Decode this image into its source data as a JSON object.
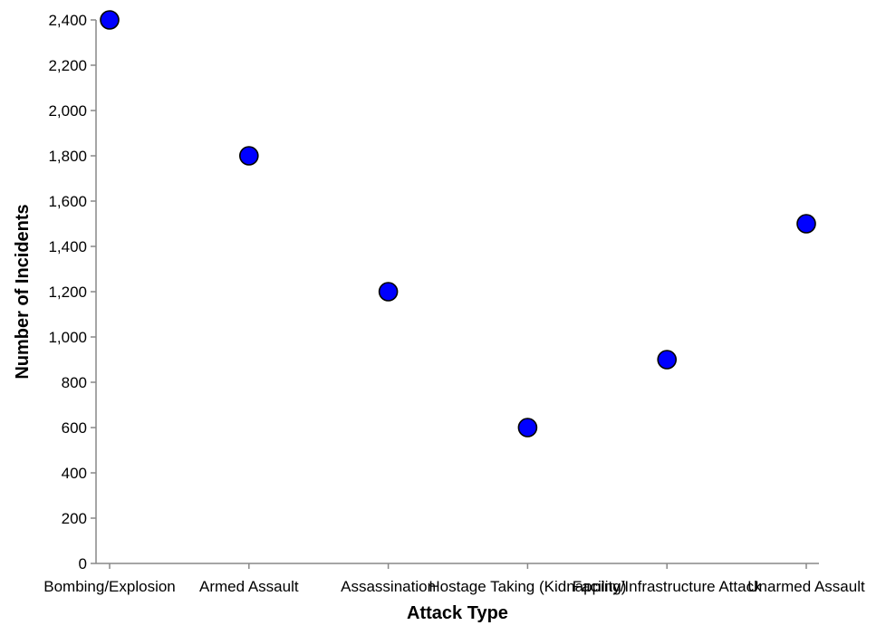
{
  "chart_data": {
    "type": "scatter",
    "title": "",
    "xlabel": "Attack Type",
    "ylabel": "Number of Incidents",
    "categories": [
      "Bombing/Explosion",
      "Armed Assault",
      "Assassination",
      "Hostage Taking (Kidnapping)",
      "Facility/Infrastructure Attack",
      "Unarmed Assault"
    ],
    "values": [
      2400,
      1800,
      1200,
      600,
      900,
      1500
    ],
    "ylim": [
      0,
      2400
    ],
    "yticks": [
      0,
      200,
      400,
      600,
      800,
      1000,
      1200,
      1400,
      1600,
      1800,
      2000,
      2200,
      2400
    ],
    "ytick_labels": [
      "0",
      "200",
      "400",
      "600",
      "800",
      "1,000",
      "1,200",
      "1,400",
      "1,600",
      "1,800",
      "2,000",
      "2,200",
      "2,400"
    ],
    "grid": false,
    "legend": "none",
    "point_color": "#0000ff",
    "point_stroke": "#000000"
  }
}
